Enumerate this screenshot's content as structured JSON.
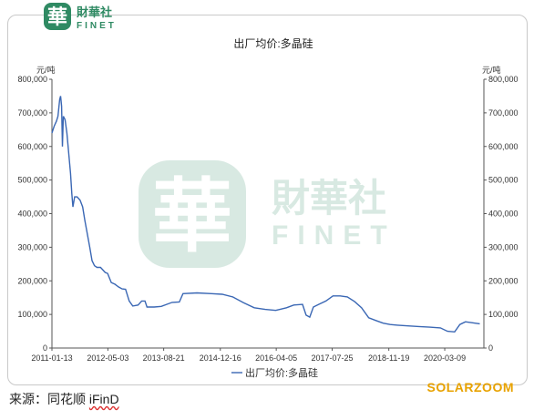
{
  "logo": {
    "glyph": "華",
    "cn": "財華社",
    "en": "FINET",
    "color": "#2f8a63"
  },
  "watermark": {
    "glyph": "華",
    "cn": "財華社",
    "en": "FINET"
  },
  "source": {
    "prefix": "来源：同花顺 ",
    "brand": "iFinD"
  },
  "solarzoom": "SOLARZOOM",
  "chart_data": {
    "type": "line",
    "title": "出厂均价:多晶硅",
    "ylabel_left": "元/吨",
    "ylabel_right": "元/吨",
    "ylim": [
      0,
      800000
    ],
    "y_ticks": [
      "0",
      "100,000",
      "200,000",
      "300,000",
      "400,000",
      "500,000",
      "600,000",
      "700,000",
      "800,000"
    ],
    "x_ticks": [
      "2011-01-13",
      "2012-05-03",
      "2013-08-21",
      "2014-12-16",
      "2016-04-05",
      "2017-07-25",
      "2018-11-19",
      "2020-03-09"
    ],
    "grid": false,
    "legend": "bottom",
    "line_color": "#3a67b4",
    "series": [
      {
        "name": "出厂均价:多晶硅",
        "points": [
          [
            "2011-01-13",
            640000
          ],
          [
            "2011-02-01",
            660000
          ],
          [
            "2011-02-20",
            675000
          ],
          [
            "2011-03-05",
            690000
          ],
          [
            "2011-03-20",
            740000
          ],
          [
            "2011-03-28",
            750000
          ],
          [
            "2011-04-05",
            720000
          ],
          [
            "2011-04-12",
            600000
          ],
          [
            "2011-04-20",
            690000
          ],
          [
            "2011-05-05",
            680000
          ],
          [
            "2011-05-20",
            640000
          ],
          [
            "2011-06-05",
            580000
          ],
          [
            "2011-06-20",
            520000
          ],
          [
            "2011-07-01",
            460000
          ],
          [
            "2011-07-10",
            420000
          ],
          [
            "2011-07-25",
            450000
          ],
          [
            "2011-08-15",
            450000
          ],
          [
            "2011-09-10",
            440000
          ],
          [
            "2011-10-01",
            420000
          ],
          [
            "2011-10-20",
            380000
          ],
          [
            "2011-11-10",
            340000
          ],
          [
            "2011-12-01",
            300000
          ],
          [
            "2011-12-20",
            260000
          ],
          [
            "2012-01-10",
            245000
          ],
          [
            "2012-02-01",
            240000
          ],
          [
            "2012-03-01",
            240000
          ],
          [
            "2012-04-10",
            225000
          ],
          [
            "2012-05-01",
            222000
          ],
          [
            "2012-06-01",
            195000
          ],
          [
            "2012-07-01",
            190000
          ],
          [
            "2012-08-01",
            182000
          ],
          [
            "2012-09-01",
            176000
          ],
          [
            "2012-10-01",
            175000
          ],
          [
            "2012-11-01",
            140000
          ],
          [
            "2012-12-01",
            125000
          ],
          [
            "2013-01-15",
            128000
          ],
          [
            "2013-02-15",
            140000
          ],
          [
            "2013-03-15",
            140000
          ],
          [
            "2013-04-01",
            122000
          ],
          [
            "2013-06-01",
            122000
          ],
          [
            "2013-08-01",
            124000
          ],
          [
            "2013-09-15",
            130000
          ],
          [
            "2013-11-01",
            136000
          ],
          [
            "2014-01-01",
            137000
          ],
          [
            "2014-02-01",
            162000
          ],
          [
            "2014-06-01",
            164000
          ],
          [
            "2014-10-01",
            162000
          ],
          [
            "2015-01-01",
            160000
          ],
          [
            "2015-04-01",
            152000
          ],
          [
            "2015-07-01",
            135000
          ],
          [
            "2015-10-01",
            120000
          ],
          [
            "2016-01-01",
            115000
          ],
          [
            "2016-04-01",
            112000
          ],
          [
            "2016-07-01",
            120000
          ],
          [
            "2016-09-01",
            128000
          ],
          [
            "2016-11-15",
            130000
          ],
          [
            "2016-12-15",
            98000
          ],
          [
            "2017-01-15",
            92000
          ],
          [
            "2017-02-15",
            122000
          ],
          [
            "2017-04-01",
            130000
          ],
          [
            "2017-06-01",
            140000
          ],
          [
            "2017-08-01",
            155000
          ],
          [
            "2017-10-01",
            155000
          ],
          [
            "2017-12-01",
            152000
          ],
          [
            "2018-02-01",
            138000
          ],
          [
            "2018-04-01",
            120000
          ],
          [
            "2018-06-01",
            90000
          ],
          [
            "2018-08-01",
            82000
          ],
          [
            "2018-10-01",
            74000
          ],
          [
            "2018-12-01",
            70000
          ],
          [
            "2019-02-01",
            68000
          ],
          [
            "2019-05-01",
            66000
          ],
          [
            "2019-08-01",
            64000
          ],
          [
            "2019-11-01",
            62000
          ],
          [
            "2020-02-01",
            60000
          ],
          [
            "2020-04-01",
            50000
          ],
          [
            "2020-06-01",
            48000
          ],
          [
            "2020-07-15",
            70000
          ],
          [
            "2020-09-01",
            78000
          ],
          [
            "2020-11-01",
            75000
          ],
          [
            "2021-01-01",
            72000
          ]
        ]
      }
    ]
  }
}
